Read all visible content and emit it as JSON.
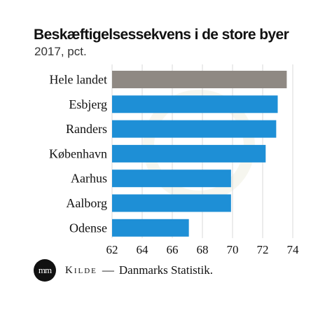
{
  "title": "Beskæftigelsessekvens i de store byer",
  "subtitle": "2017, pct.",
  "chart_data": {
    "type": "bar",
    "orientation": "horizontal",
    "categories": [
      "Hele landet",
      "Esbjerg",
      "Randers",
      "København",
      "Aarhus",
      "Aalborg",
      "Odense"
    ],
    "values": [
      73.6,
      73.0,
      72.9,
      72.2,
      69.9,
      69.9,
      67.1
    ],
    "bar_colors": [
      "#8f8983",
      "#1e8fd6",
      "#1e8fd6",
      "#1e8fd6",
      "#1e8fd6",
      "#1e8fd6",
      "#1e8fd6"
    ],
    "xlim": [
      62,
      74
    ],
    "xticks": [
      62,
      64,
      66,
      68,
      70,
      72,
      74
    ],
    "grid": "vertical",
    "legend": "none"
  },
  "source": {
    "logo_text": "mm",
    "label": "Kilde",
    "separator": "—",
    "name": "Danmarks Statistik."
  }
}
